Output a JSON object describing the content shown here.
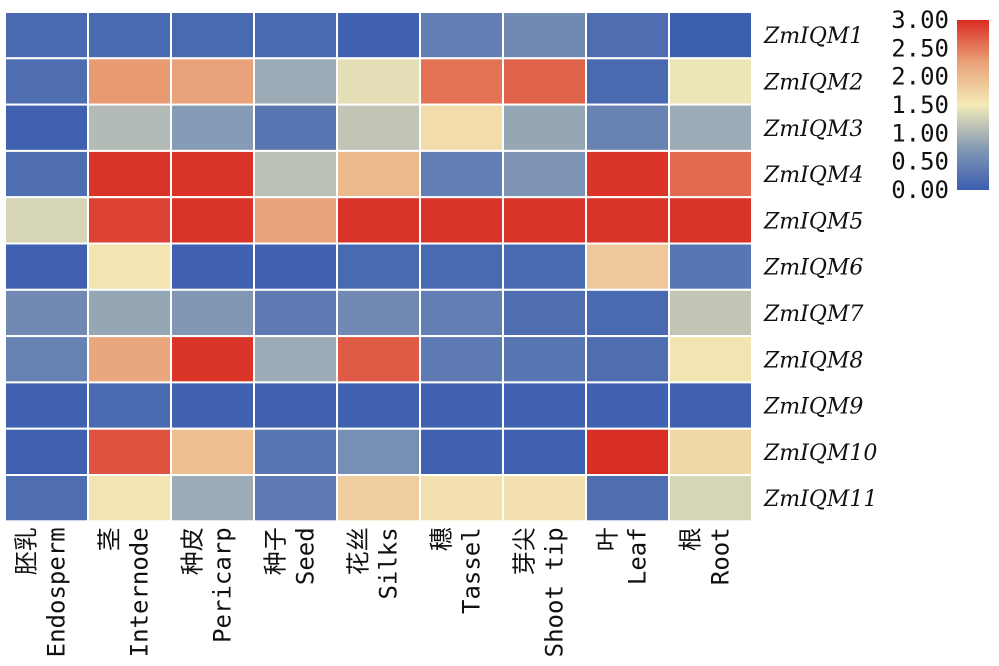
{
  "chart_data": {
    "type": "heatmap",
    "title": "",
    "xlabel": "",
    "ylabel": "",
    "colorbar": {
      "min": 0,
      "max": 3,
      "ticks": [
        "3.00",
        "2.50",
        "2.00",
        "1.50",
        "1.00",
        "0.50",
        "0.00"
      ],
      "colors": [
        "#3a5daf",
        "#869bb5",
        "#f3eab6",
        "#e9a279",
        "#d92b22"
      ]
    },
    "columns": [
      {
        "cn": "胚乳",
        "en": "Endosperm"
      },
      {
        "cn": "茎",
        "en": "Internode"
      },
      {
        "cn": "种皮",
        "en": "Pericarp"
      },
      {
        "cn": "种子",
        "en": "Seed"
      },
      {
        "cn": "花丝",
        "en": "Silks"
      },
      {
        "cn": "穗",
        "en": "Tassel"
      },
      {
        "cn": "芽尖",
        "en": "Shoot tip"
      },
      {
        "cn": "叶",
        "en": "Leaf"
      },
      {
        "cn": "根",
        "en": "Root"
      }
    ],
    "rows": [
      "ZmIQM1",
      "ZmIQM2",
      "ZmIQM3",
      "ZmIQM4",
      "ZmIQM5",
      "ZmIQM6",
      "ZmIQM7",
      "ZmIQM8",
      "ZmIQM9",
      "ZmIQM10",
      "ZmIQM11"
    ],
    "values": [
      [
        0.15,
        0.15,
        0.15,
        0.15,
        0.05,
        0.4,
        0.55,
        0.2,
        0.02
      ],
      [
        0.2,
        2.3,
        2.25,
        0.9,
        1.4,
        2.55,
        2.65,
        0.15,
        1.45
      ],
      [
        0.05,
        1.05,
        0.75,
        0.3,
        1.15,
        1.65,
        0.85,
        0.45,
        0.9
      ],
      [
        0.2,
        2.95,
        2.95,
        1.1,
        2.0,
        0.4,
        0.65,
        2.95,
        2.6
      ],
      [
        1.3,
        2.85,
        2.95,
        2.25,
        2.95,
        2.95,
        2.95,
        2.95,
        2.95
      ],
      [
        0.05,
        1.55,
        0.05,
        0.05,
        0.15,
        0.15,
        0.15,
        1.85,
        0.3
      ],
      [
        0.55,
        0.85,
        0.7,
        0.35,
        0.55,
        0.4,
        0.2,
        0.15,
        1.15
      ],
      [
        0.45,
        2.2,
        2.95,
        0.9,
        2.7,
        0.35,
        0.3,
        0.2,
        1.55
      ],
      [
        0.05,
        0.15,
        0.05,
        0.05,
        0.05,
        0.05,
        0.05,
        0.05,
        0.05
      ],
      [
        0.05,
        2.75,
        1.95,
        0.3,
        0.6,
        0.05,
        0.05,
        2.98,
        1.7
      ],
      [
        0.2,
        1.55,
        0.9,
        0.35,
        1.8,
        1.6,
        1.6,
        0.2,
        1.3
      ]
    ]
  }
}
